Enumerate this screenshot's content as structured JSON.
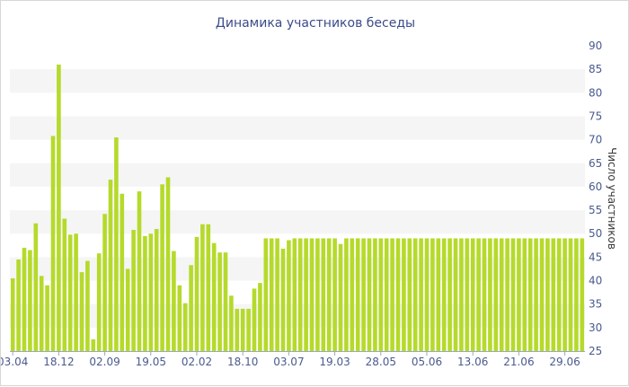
{
  "chart_data": {
    "type": "bar",
    "title": "Динамика участников беседы",
    "ylabel": "Число участников",
    "xlabel": "",
    "ylim": [
      25,
      90
    ],
    "yticks": [
      25,
      30,
      35,
      40,
      45,
      50,
      55,
      60,
      65,
      70,
      75,
      80,
      85,
      90
    ],
    "y_axis_position": "right",
    "grid": "alternating-bands",
    "bar_color": "#b5da2b",
    "band_color": "#f5f5f5",
    "title_color": "#3b4b8a",
    "tick_color": "#4a5a8e",
    "x_tick_labels": [
      {
        "label": "03.04",
        "index": 0
      },
      {
        "label": "18.12",
        "index": 8
      },
      {
        "label": "02.09",
        "index": 16
      },
      {
        "label": "19.05",
        "index": 24
      },
      {
        "label": "02.02",
        "index": 32
      },
      {
        "label": "18.10",
        "index": 40
      },
      {
        "label": "03.07",
        "index": 48
      },
      {
        "label": "19.03",
        "index": 56
      },
      {
        "label": "28.05",
        "index": 64
      },
      {
        "label": "05.06",
        "index": 72
      },
      {
        "label": "13.06",
        "index": 80
      },
      {
        "label": "21.06",
        "index": 88
      },
      {
        "label": "29.06",
        "index": 96
      }
    ],
    "values": [
      40.5,
      44.5,
      47,
      46.5,
      52.2,
      41,
      39,
      70.8,
      86,
      53.2,
      49.8,
      50,
      41.8,
      44.2,
      27.5,
      45.8,
      54.2,
      61.5,
      70.5,
      58.5,
      42.5,
      50.8,
      59,
      49.5,
      50,
      51,
      60.5,
      62,
      46.3,
      39,
      35.2,
      43.3,
      49.3,
      52,
      52,
      48,
      46,
      46,
      36.8,
      34,
      34,
      34,
      38.3,
      39.5,
      49,
      49,
      49,
      46.8,
      48.6,
      49,
      49,
      49,
      49,
      49,
      49,
      49,
      49,
      47.8,
      49,
      49,
      49,
      49,
      49,
      49,
      49,
      49,
      49,
      49,
      49,
      49,
      49,
      49,
      49,
      49,
      49,
      49,
      49,
      49,
      49,
      49,
      49,
      49,
      49,
      49,
      49,
      49,
      49,
      49,
      49,
      49,
      49,
      49,
      49,
      49,
      49,
      49,
      49,
      49,
      49,
      49
    ]
  }
}
